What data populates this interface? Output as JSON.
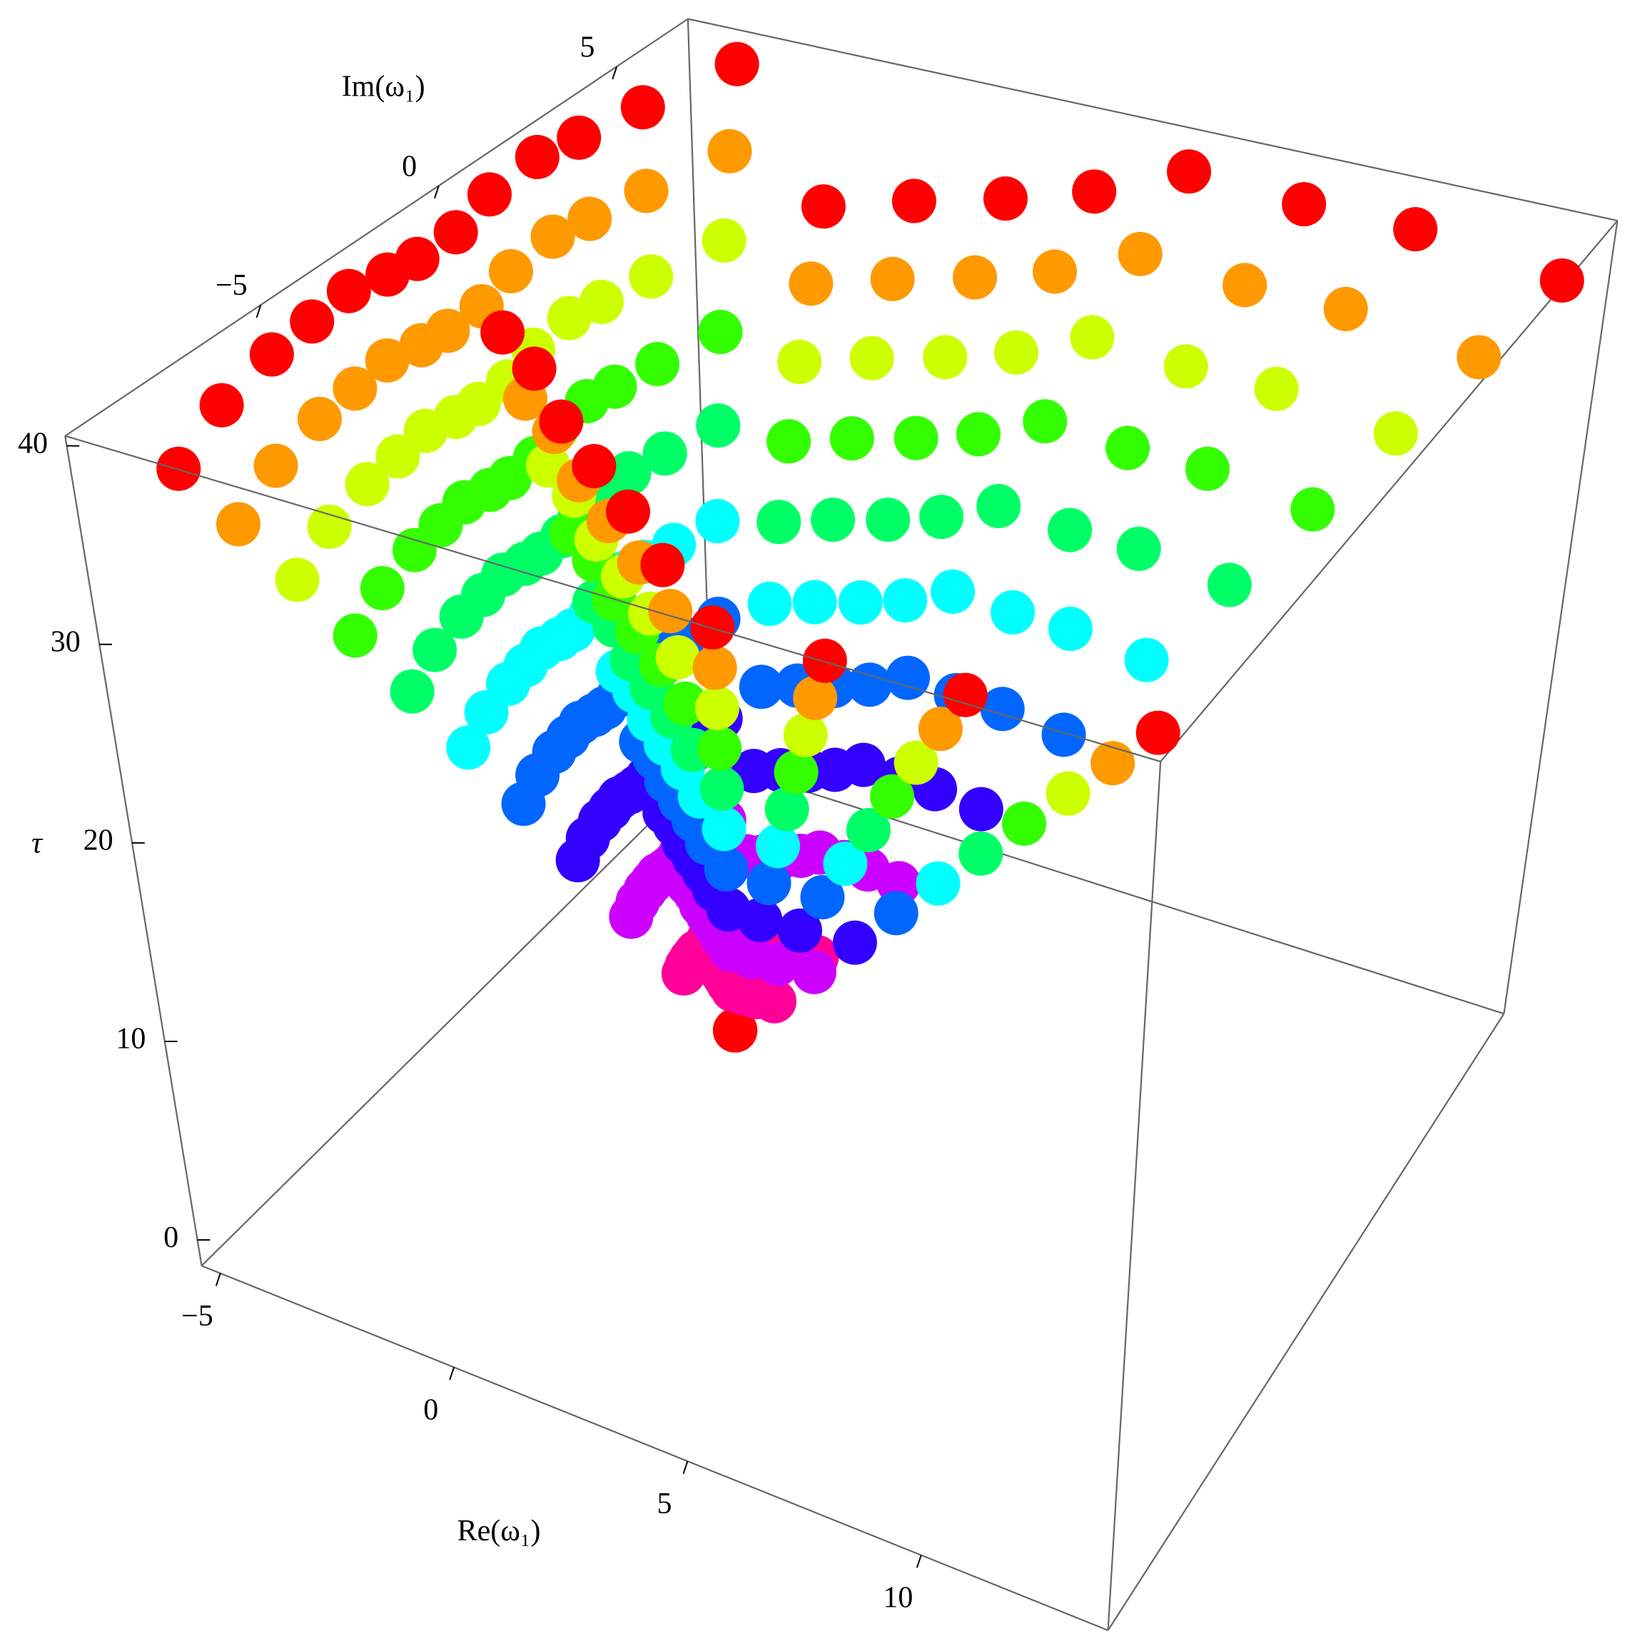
{
  "chart_data": {
    "type": "scatter3d",
    "xlabel": "Re(ω₁)",
    "ylabel": "Im(ω₁)",
    "zlabel": "τ",
    "xlim": [
      -5.4,
      14
    ],
    "ylim": [
      -10.5,
      7
    ],
    "zlim": [
      -1.3,
      40.5
    ],
    "xticks": [
      {
        "value": -5,
        "label": "−5"
      },
      0,
      5,
      10
    ],
    "yticks": [
      {
        "value": -5,
        "label": "−5"
      },
      0,
      5
    ],
    "zticks": [
      0,
      10,
      20,
      30,
      40
    ],
    "colormap": "hue",
    "z": [
      20,
      22,
      24,
      26,
      28,
      30,
      32,
      34,
      36,
      38,
      40
    ],
    "series": [
      {
        "x": [
          6,
          5.04,
          4.08,
          3.12,
          2.16,
          1.2,
          0.24,
          -0.72,
          -1.68,
          -2.64,
          -3.6
        ],
        "y": [
          -10,
          -10.02,
          -10.04,
          -10.06,
          -10.08,
          -10.1,
          -10.12,
          -10.14,
          -10.16,
          -10.18,
          -10.2
        ]
      },
      {
        "x": [
          6,
          4.98,
          3.96,
          2.94,
          1.92,
          0.9,
          -0.12,
          -1.14,
          -2.16,
          -3.18,
          -4.2
        ],
        "y": [
          -10,
          -9.8,
          -9.6,
          -9.4,
          -9.2,
          -9,
          -8.8,
          -8.6,
          -8.4,
          -8.2,
          -8
        ]
      },
      {
        "x": [
          6,
          4.95,
          3.9,
          2.85,
          1.8,
          0.75,
          -0.3,
          -1.35,
          -2.4,
          -3.45,
          -4.5
        ],
        "y": [
          -10,
          -9.61,
          -9.22,
          -8.83,
          -8.44,
          -8.05,
          -7.66,
          -7.27,
          -6.88,
          -6.49,
          -6.1
        ]
      },
      {
        "x": [
          6,
          4.94,
          3.88,
          2.82,
          1.76,
          0.7,
          -0.36,
          -1.42,
          -2.48,
          -3.54,
          -4.6
        ],
        "y": [
          -10,
          -9.48,
          -8.96,
          -8.44,
          -7.92,
          -7.4,
          -6.88,
          -6.36,
          -5.84,
          -5.32,
          -4.8
        ]
      },
      {
        "x": [
          6,
          4.93,
          3.86,
          2.79,
          1.72,
          0.65,
          -0.42,
          -1.49,
          -2.56,
          -3.63,
          -4.7
        ],
        "y": [
          -10,
          -9.36,
          -8.72,
          -8.08,
          -7.44,
          -6.8,
          -6.16,
          -5.52,
          -4.88,
          -4.24,
          -3.6
        ]
      },
      {
        "x": [
          6,
          4.95,
          3.9,
          2.85,
          1.8,
          0.75,
          -0.3,
          -1.35,
          -2.4,
          -3.45,
          -4.5
        ],
        "y": [
          -10,
          -9.28,
          -8.56,
          -7.84,
          -7.12,
          -6.4,
          -5.68,
          -4.96,
          -4.24,
          -3.52,
          -2.8
        ]
      },
      {
        "x": [
          6,
          4.96,
          3.92,
          2.88,
          1.84,
          0.8,
          -0.24,
          -1.28,
          -2.32,
          -3.36,
          -4.4
        ],
        "y": [
          -10,
          -9.21,
          -8.42,
          -7.63,
          -6.84,
          -6.05,
          -5.26,
          -4.47,
          -3.68,
          -2.89,
          -2.1
        ]
      },
      {
        "x": [
          6,
          4.96,
          3.92,
          2.88,
          1.84,
          0.8,
          -0.24,
          -1.28,
          -2.32,
          -3.36,
          -4.4
        ],
        "y": [
          -10,
          -9.1,
          -8.2,
          -7.3,
          -6.4,
          -5.5,
          -4.6,
          -3.7,
          -2.8,
          -1.9,
          -1
        ]
      },
      {
        "x": [
          6,
          4.93,
          3.86,
          2.79,
          1.72,
          0.65,
          -0.42,
          -1.49,
          -2.56,
          -3.63,
          -4.7
        ],
        "y": [
          -10,
          -8.96,
          -7.92,
          -6.88,
          -5.84,
          -4.8,
          -3.76,
          -2.72,
          -1.68,
          -0.64,
          0.4
        ]
      },
      {
        "x": [
          6,
          4.92,
          3.84,
          2.76,
          1.68,
          0.6,
          -0.48,
          -1.56,
          -2.64,
          -3.72,
          -4.8
        ],
        "y": [
          -10,
          -8.81,
          -7.62,
          -6.43,
          -5.24,
          -4.05,
          -2.86,
          -1.67,
          -0.48,
          0.71,
          1.9
        ]
      },
      {
        "x": [
          6,
          4.94,
          3.88,
          2.82,
          1.76,
          0.7,
          -0.36,
          -1.42,
          -2.48,
          -3.54,
          -4.6
        ],
        "y": [
          -10,
          -8.72,
          -7.44,
          -6.16,
          -4.88,
          -3.6,
          -2.32,
          -1.04,
          0.24,
          1.52,
          2.8
        ]
      },
      {
        "x": [
          6,
          4.97,
          3.94,
          2.91,
          1.88,
          0.85,
          -0.18,
          -1.21,
          -2.24,
          -3.27,
          -4.3
        ],
        "y": [
          -10,
          -8.58,
          -7.16,
          -5.74,
          -4.32,
          -2.9,
          -1.48,
          -0.06,
          1.36,
          2.78,
          4.2
        ]
      },
      {
        "x": [
          6,
          5.02,
          4.04,
          3.06,
          2.08,
          1.1,
          0.12,
          -0.86,
          -1.84,
          -2.82,
          -3.8
        ],
        "y": [
          -10,
          -8.38,
          -6.76,
          -5.14,
          -3.52,
          -1.9,
          -0.28,
          1.34,
          2.96,
          4.58,
          6.2
        ]
      },
      {
        "x": [
          6,
          5.45,
          4.9,
          4.35,
          3.8,
          3.25,
          2.7,
          2.15,
          1.6,
          1.05,
          0.5
        ],
        "y": [
          -10,
          -8.75,
          -7.5,
          -6.25,
          -5,
          -3.75,
          -2.5,
          -1.25,
          0,
          1.25,
          2.5
        ]
      },
      {
        "x": [
          6,
          5.58,
          5.16,
          4.74,
          4.32,
          3.9,
          3.48,
          3.06,
          2.64,
          2.22,
          1.8
        ],
        "y": [
          -10,
          -8.67,
          -7.34,
          -6.01,
          -4.68,
          -3.35,
          -2.02,
          -0.69,
          0.64,
          1.97,
          3.3
        ]
      },
      {
        "x": [
          6,
          5.72,
          5.44,
          5.16,
          4.88,
          4.6,
          4.32,
          4.04,
          3.76,
          3.48,
          3.2
        ],
        "y": [
          -10,
          -8.6,
          -7.2,
          -5.8,
          -4.4,
          -3,
          -1.6,
          -0.2,
          1.2,
          2.6,
          4
        ]
      },
      {
        "x": [
          6,
          5.85,
          5.7,
          5.55,
          5.4,
          5.25,
          5.1,
          4.95,
          4.8,
          4.65,
          4.5
        ],
        "y": [
          -10,
          -8.52,
          -7.04,
          -5.56,
          -4.08,
          -2.6,
          -1.12,
          0.36,
          1.84,
          3.32,
          4.8
        ]
      },
      {
        "x": [
          6,
          5.97,
          5.94,
          5.91,
          5.88,
          5.85,
          5.82,
          5.79,
          5.76,
          5.73,
          5.7
        ],
        "y": [
          -10,
          -8.4,
          -6.8,
          -5.2,
          -3.6,
          -2,
          -0.4,
          1.2,
          2.8,
          4.4,
          6
        ]
      },
      {
        "x": [
          6,
          6.22,
          6.44,
          6.66,
          6.88,
          7.1,
          7.32,
          7.54,
          7.76,
          7.98,
          8.2
        ],
        "y": [
          -10,
          -8.42,
          -6.84,
          -5.26,
          -3.68,
          -2.1,
          -0.52,
          1.06,
          2.64,
          4.22,
          5.8
        ]
      },
      {
        "x": [
          6,
          6.45,
          6.9,
          7.35,
          7.8,
          8.25,
          8.7,
          9.15,
          9.6,
          10.05,
          10.5
        ],
        "y": [
          -10,
          -8.42,
          -6.84,
          -5.26,
          -3.68,
          -2.1,
          -0.52,
          1.06,
          2.64,
          4.22,
          5.8
        ]
      },
      {
        "x": [
          6,
          6.78,
          7.56,
          8.34,
          9.12,
          9.9,
          10.68,
          11.46,
          12.24,
          13.02,
          13.8
        ],
        "y": [
          -10,
          -8.47,
          -6.94,
          -5.41,
          -3.88,
          -2.35,
          -0.82,
          0.71,
          2.24,
          3.77,
          5.3
        ]
      },
      {
        "x": [
          6,
          5.22,
          4.44,
          3.66,
          2.88,
          2.1,
          1.32,
          0.54,
          -0.24,
          -1.02,
          -1.8
        ],
        "y": [
          -10,
          -9.36,
          -8.72,
          -8.08,
          -7.44,
          -6.8,
          -6.16,
          -5.52,
          -4.88,
          -4.24,
          -3.6
        ]
      },
      {
        "x": [
          6,
          5.33,
          4.66,
          3.99,
          3.32,
          2.65,
          1.98,
          1.31,
          0.64,
          -0.03,
          -0.7
        ],
        "y": [
          -10,
          -9.44,
          -8.88,
          -8.32,
          -7.76,
          -7.2,
          -6.64,
          -6.08,
          -5.52,
          -4.96,
          -4.4
        ]
      },
      {
        "x": [
          6,
          5.46,
          4.92,
          4.38,
          3.84,
          3.3,
          2.76,
          2.22,
          1.68,
          1.14,
          0.6
        ],
        "y": [
          -10,
          -9.57,
          -9.14,
          -8.71,
          -8.28,
          -7.85,
          -7.42,
          -6.99,
          -6.56,
          -6.13,
          -5.7
        ]
      },
      {
        "x": [
          6,
          5.58,
          5.16,
          4.74,
          4.32,
          3.9,
          3.48,
          3.06,
          2.64,
          2.22,
          1.8
        ],
        "y": [
          -10,
          -9.67,
          -9.34,
          -9.01,
          -8.68,
          -8.35,
          -8.02,
          -7.69,
          -7.36,
          -7.03,
          -6.7
        ]
      },
      {
        "x": [
          6,
          5.7,
          5.4,
          5.1,
          4.8,
          4.5,
          4.2,
          3.9,
          3.6,
          3.3,
          3
        ],
        "y": [
          -10,
          -9.77,
          -9.54,
          -9.31,
          -9.08,
          -8.85,
          -8.62,
          -8.39,
          -8.16,
          -7.93,
          -7.7
        ]
      },
      {
        "x": [
          6,
          5.83,
          5.66,
          5.49,
          5.32,
          5.15,
          4.98,
          4.81,
          4.64,
          4.47,
          4.3
        ],
        "y": [
          -10,
          -9.89,
          -9.78,
          -9.67,
          -9.56,
          -9.45,
          -9.34,
          -9.23,
          -9.12,
          -9.01,
          -8.9
        ]
      },
      {
        "x": [
          6,
          5.99,
          5.98,
          5.97,
          5.96,
          5.95,
          5.94,
          5.93,
          5.92,
          5.91,
          5.9
        ],
        "y": [
          -10,
          -10.02,
          -10.04,
          -10.06,
          -10.08,
          -10.1,
          -10.12,
          -10.14,
          -10.16,
          -10.18,
          -10.2
        ]
      },
      {
        "x": [
          6,
          6.19,
          6.38,
          6.57,
          6.76,
          6.95,
          7.14,
          7.33,
          7.52,
          7.71,
          7.9
        ],
        "y": [
          -10,
          -10.02,
          -10.04,
          -10.06,
          -10.08,
          -10.1,
          -10.12,
          -10.14,
          -10.16,
          -10.18,
          -10.2
        ]
      },
      {
        "x": [
          6,
          6.43,
          6.86,
          7.29,
          7.72,
          8.15,
          8.58,
          9.01,
          9.44,
          9.87,
          10.3
        ],
        "y": [
          -10,
          -10,
          -10,
          -10,
          -10,
          -10,
          -10,
          -10,
          -10,
          -10,
          -10
        ]
      },
      {
        "x": [
          6,
          6.75,
          7.5,
          8.25,
          9,
          9.75,
          10.5,
          11.25,
          12,
          12.75,
          13.5
        ],
        "y": [
          -10,
          -9.95,
          -9.9,
          -9.85,
          -9.8,
          -9.75,
          -9.7,
          -9.65,
          -9.6,
          -9.55,
          -9.5
        ]
      }
    ]
  }
}
